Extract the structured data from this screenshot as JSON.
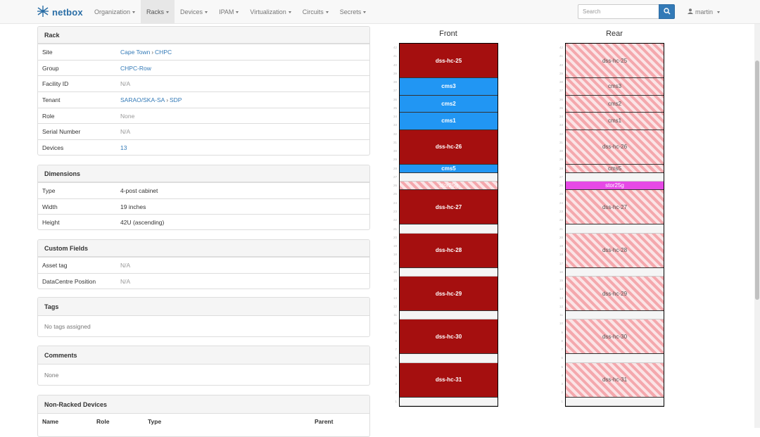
{
  "brand": {
    "name": "netbox",
    "brand_color": "#2a6ea6"
  },
  "nav": [
    {
      "label": "Organization"
    },
    {
      "label": "Racks",
      "active": true
    },
    {
      "label": "Devices"
    },
    {
      "label": "IPAM"
    },
    {
      "label": "Virtualization"
    },
    {
      "label": "Circuits"
    },
    {
      "label": "Secrets"
    }
  ],
  "search": {
    "placeholder": "Search"
  },
  "user": {
    "name": "martin"
  },
  "rack_panel": {
    "title": "Rack",
    "site_label": "Site",
    "site_parent": "Cape Town",
    "site_child": "CHPC",
    "group_label": "Group",
    "group_value": "CHPC-Row",
    "facility_label": "Facility ID",
    "facility_value": "N/A",
    "tenant_label": "Tenant",
    "tenant_parent": "SARAO/SKA-SA",
    "tenant_child": "SDP",
    "role_label": "Role",
    "role_value": "None",
    "serial_label": "Serial Number",
    "serial_value": "N/A",
    "devices_label": "Devices",
    "devices_value": "13"
  },
  "dimensions_panel": {
    "title": "Dimensions",
    "type_label": "Type",
    "type_value": "4-post cabinet",
    "width_label": "Width",
    "width_value": "19 inches",
    "height_label": "Height",
    "height_value": "42U (ascending)"
  },
  "custom_fields_panel": {
    "title": "Custom Fields",
    "asset_label": "Asset tag",
    "asset_value": "N/A",
    "dc_label": "DataCentre Position",
    "dc_value": "N/A"
  },
  "tags_panel": {
    "title": "Tags",
    "body": "No tags assigned"
  },
  "comments_panel": {
    "title": "Comments",
    "body": "None"
  },
  "non_racked_panel": {
    "title": "Non-Racked Devices",
    "columns": [
      "Name",
      "Role",
      "Type",
      "Parent"
    ]
  },
  "rack_elevation": {
    "front_title": "Front",
    "rear_title": "Rear",
    "unit_count": 42,
    "colors": {
      "storage_red": "#a50f0f",
      "cms_blue": "#2196f3",
      "stor25g_magenta": "#e649e6"
    },
    "devices": [
      {
        "name": "dss-hc-25",
        "top_u": 42,
        "height_u": 4,
        "kind": "red"
      },
      {
        "name": "cms3",
        "top_u": 38,
        "height_u": 2,
        "kind": "blue"
      },
      {
        "name": "cms2",
        "top_u": 36,
        "height_u": 2,
        "kind": "blue"
      },
      {
        "name": "cms1",
        "top_u": 34,
        "height_u": 2,
        "kind": "blue"
      },
      {
        "name": "dss-hc-26",
        "top_u": 32,
        "height_u": 4,
        "kind": "red"
      },
      {
        "name": "cms5",
        "top_u": 28,
        "height_u": 1,
        "kind": "blue"
      },
      {
        "name": "stor25g",
        "top_u": 26,
        "height_u": 1,
        "kind": "stor"
      },
      {
        "name": "dss-hc-27",
        "top_u": 25,
        "height_u": 4,
        "kind": "red"
      },
      {
        "name": "dss-hc-28",
        "top_u": 20,
        "height_u": 4,
        "kind": "red"
      },
      {
        "name": "dss-hc-29",
        "top_u": 15,
        "height_u": 4,
        "kind": "red"
      },
      {
        "name": "dss-hc-30",
        "top_u": 10,
        "height_u": 4,
        "kind": "red"
      },
      {
        "name": "dss-hc-31",
        "top_u": 5,
        "height_u": 4,
        "kind": "red"
      }
    ]
  }
}
